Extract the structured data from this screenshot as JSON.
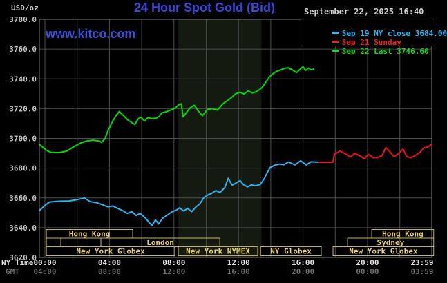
{
  "header": {
    "unit": "USD/oz",
    "title": "24 Hour Spot Gold (Bid)",
    "datetime": "September 22, 2025 16:40",
    "watermark": "www.kitco.com"
  },
  "axis_captions": {
    "ny_time": "NY Time",
    "gmt": "GMT"
  },
  "legend": {
    "items": [
      {
        "color": "#2fb3f2",
        "text": "Sep 19 NY close 3684.00"
      },
      {
        "color": "#f22020",
        "text": "Sep 21 Sunday"
      },
      {
        "color": "#16d916",
        "text": "Sep 22 Last 3746.60"
      }
    ]
  },
  "colors": {
    "sep19_line": "#2fb3f2",
    "sep21_line": "#ee1212",
    "sep22_line": "#00dc00",
    "session_box": "#c8b45e",
    "session_text": "#e8d27a",
    "shaded_band": "#141a0f",
    "grid": "#4d4d4d",
    "border": "#7d7d7d",
    "tick_ny": "#e8e8e8",
    "tick_gmt": "#6f6f6f",
    "tick_y": "#c8c8c8"
  },
  "chart_data": {
    "type": "line",
    "title": "24 Hour Spot Gold (Bid)",
    "ylabel": "USD/oz",
    "ylim": [
      3620,
      3780
    ],
    "y_step": 20,
    "y_ticks": [
      "3780.0",
      "3760.0",
      "3740.0",
      "3720.0",
      "3700.0",
      "3680.0",
      "3660.0",
      "3640.0",
      "3620.0"
    ],
    "x_tick_hours": [
      0,
      4,
      8,
      12,
      16,
      20,
      23.983
    ],
    "x_ticks_ny": [
      "00:00",
      "04:00",
      "08:00",
      "12:00",
      "16:00",
      "20:00",
      "23:59"
    ],
    "x_ticks_gmt": [
      "04:00",
      "08:00",
      "12:00",
      "16:00",
      "20:00",
      "00:00",
      "03:59"
    ],
    "grid_hours_step": 2,
    "shaded_band_hours": [
      8.27,
      13.42
    ],
    "sessions": [
      {
        "label": "Hong Kong",
        "row": 0,
        "from": 0.09,
        "to": 5.44
      },
      {
        "label": "Hong Kong",
        "row": 0,
        "from": 20.26,
        "to": 24.1
      },
      {
        "label": "",
        "row": 1,
        "from": 0.09,
        "to": 0.99
      },
      {
        "label": "",
        "row": 1,
        "from": 0.99,
        "to": 3.47
      },
      {
        "label": "London",
        "row": 1,
        "from": 3.47,
        "to": 10.84
      },
      {
        "label": "Sydney",
        "row": 1,
        "from": 18.76,
        "to": 24.1
      },
      {
        "label": "New York Globex",
        "row": 2,
        "from": 0.09,
        "to": 8.05
      },
      {
        "label": "New York NYMEX",
        "row": 2,
        "from": 8.27,
        "to": 13.19
      },
      {
        "label": "NY Globex",
        "row": 2,
        "from": 13.37,
        "to": 17.13
      },
      {
        "label": "New York Globex",
        "row": 2,
        "from": 17.86,
        "to": 24.1
      }
    ],
    "series": [
      {
        "name": "sep19-ny-close",
        "legend": "Sep 19 NY close 3684.00",
        "color": "#2fb3f2",
        "points": [
          [
            -0.34,
            3651.5
          ],
          [
            0,
            3655
          ],
          [
            0.3,
            3657.3
          ],
          [
            0.9,
            3657.8
          ],
          [
            1.5,
            3658
          ],
          [
            2.0,
            3658.8
          ],
          [
            2.45,
            3660
          ],
          [
            2.8,
            3657.5
          ],
          [
            3.2,
            3656.8
          ],
          [
            3.6,
            3655.3
          ],
          [
            3.9,
            3654
          ],
          [
            4.2,
            3654.6
          ],
          [
            4.55,
            3652.8
          ],
          [
            4.85,
            3651.3
          ],
          [
            5.1,
            3649.6
          ],
          [
            5.4,
            3650.8
          ],
          [
            5.65,
            3648.2
          ],
          [
            5.9,
            3649.6
          ],
          [
            6.2,
            3646.8
          ],
          [
            6.5,
            3643
          ],
          [
            6.65,
            3641.6
          ],
          [
            6.85,
            3645.2
          ],
          [
            7.05,
            3642.6
          ],
          [
            7.3,
            3646.4
          ],
          [
            7.6,
            3648.6
          ],
          [
            7.9,
            3650.8
          ],
          [
            8.15,
            3651.8
          ],
          [
            8.35,
            3653.4
          ],
          [
            8.6,
            3651.2
          ],
          [
            8.85,
            3653
          ],
          [
            9.1,
            3650.8
          ],
          [
            9.35,
            3653.8
          ],
          [
            9.6,
            3656
          ],
          [
            9.86,
            3660.3
          ],
          [
            10.1,
            3662
          ],
          [
            10.35,
            3663.2
          ],
          [
            10.6,
            3665
          ],
          [
            10.85,
            3663.6
          ],
          [
            11.15,
            3667
          ],
          [
            11.36,
            3673.2
          ],
          [
            11.6,
            3668.6
          ],
          [
            11.85,
            3670
          ],
          [
            12.1,
            3671.6
          ],
          [
            12.3,
            3669
          ],
          [
            12.55,
            3667.4
          ],
          [
            12.8,
            3668.8
          ],
          [
            13.05,
            3668.2
          ],
          [
            13.35,
            3669
          ],
          [
            13.6,
            3673
          ],
          [
            13.78,
            3677
          ],
          [
            13.97,
            3680.5
          ],
          [
            14.25,
            3682
          ],
          [
            14.55,
            3682.8
          ],
          [
            14.8,
            3682.3
          ],
          [
            15.1,
            3684.2
          ],
          [
            15.5,
            3682.2
          ],
          [
            15.85,
            3685
          ],
          [
            16.2,
            3682.2
          ],
          [
            16.5,
            3684.3
          ],
          [
            17.0,
            3684
          ]
        ]
      },
      {
        "name": "sep21-sunday",
        "legend": "Sep 21 Sunday",
        "color": "#ee1212",
        "points": [
          [
            17.0,
            3684
          ],
          [
            17.85,
            3684
          ],
          [
            17.95,
            3689.5
          ],
          [
            18.3,
            3691.5
          ],
          [
            18.65,
            3689.5
          ],
          [
            18.95,
            3687.5
          ],
          [
            19.2,
            3690
          ],
          [
            19.5,
            3688.5
          ],
          [
            19.8,
            3686.3
          ],
          [
            20.05,
            3689.3
          ],
          [
            20.35,
            3687
          ],
          [
            20.65,
            3687.2
          ],
          [
            20.9,
            3688.5
          ],
          [
            21.13,
            3693.8
          ],
          [
            21.35,
            3691.5
          ],
          [
            21.65,
            3687.7
          ],
          [
            21.95,
            3690
          ],
          [
            22.2,
            3693
          ],
          [
            22.42,
            3687.8
          ],
          [
            22.7,
            3687
          ],
          [
            22.95,
            3688.5
          ],
          [
            23.25,
            3690.7
          ],
          [
            23.5,
            3693.8
          ],
          [
            23.75,
            3694.3
          ],
          [
            23.98,
            3696.3
          ]
        ]
      },
      {
        "name": "sep22-last",
        "legend": "Sep 22 Last 3746.60",
        "color": "#00dc00",
        "points": [
          [
            -0.34,
            3696
          ],
          [
            0.1,
            3692
          ],
          [
            0.4,
            3690.5
          ],
          [
            0.9,
            3690.5
          ],
          [
            1.37,
            3691.5
          ],
          [
            1.8,
            3694.5
          ],
          [
            2.23,
            3697
          ],
          [
            2.6,
            3698.3
          ],
          [
            3.0,
            3698.8
          ],
          [
            3.39,
            3698.2
          ],
          [
            3.51,
            3697.2
          ],
          [
            3.73,
            3700
          ],
          [
            3.94,
            3706
          ],
          [
            4.24,
            3712.4
          ],
          [
            4.46,
            3716
          ],
          [
            4.61,
            3718.1
          ],
          [
            4.93,
            3714.7
          ],
          [
            5.14,
            3712.4
          ],
          [
            5.36,
            3710.8
          ],
          [
            5.57,
            3709.3
          ],
          [
            5.79,
            3713.2
          ],
          [
            5.96,
            3714.3
          ],
          [
            6.17,
            3711.6
          ],
          [
            6.38,
            3714
          ],
          [
            6.6,
            3713.3
          ],
          [
            6.9,
            3713.6
          ],
          [
            7.1,
            3715
          ],
          [
            7.24,
            3717.1
          ],
          [
            7.5,
            3717.8
          ],
          [
            7.88,
            3719.4
          ],
          [
            8.1,
            3720.5
          ],
          [
            8.27,
            3722.5
          ],
          [
            8.45,
            3723.3
          ],
          [
            8.57,
            3714.5
          ],
          [
            8.75,
            3717
          ],
          [
            9.0,
            3720.5
          ],
          [
            9.26,
            3722.3
          ],
          [
            9.5,
            3718.5
          ],
          [
            9.77,
            3715.2
          ],
          [
            10.07,
            3719.5
          ],
          [
            10.4,
            3720
          ],
          [
            10.7,
            3719
          ],
          [
            11.06,
            3723.5
          ],
          [
            11.4,
            3726
          ],
          [
            11.6,
            3727.8
          ],
          [
            11.83,
            3730
          ],
          [
            12.1,
            3731
          ],
          [
            12.35,
            3729.8
          ],
          [
            12.6,
            3732
          ],
          [
            12.85,
            3730.5
          ],
          [
            13.1,
            3731.3
          ],
          [
            13.45,
            3734
          ],
          [
            13.7,
            3738
          ],
          [
            13.9,
            3741
          ],
          [
            14.1,
            3743.2
          ],
          [
            14.35,
            3745
          ],
          [
            14.65,
            3746.2
          ],
          [
            14.9,
            3747.2
          ],
          [
            15.1,
            3747.4
          ],
          [
            15.35,
            3746
          ],
          [
            15.6,
            3744.2
          ],
          [
            15.85,
            3746.8
          ],
          [
            16.0,
            3748.2
          ],
          [
            16.15,
            3745.7
          ],
          [
            16.35,
            3747.3
          ],
          [
            16.5,
            3746
          ],
          [
            16.67,
            3746.6
          ]
        ]
      }
    ]
  }
}
